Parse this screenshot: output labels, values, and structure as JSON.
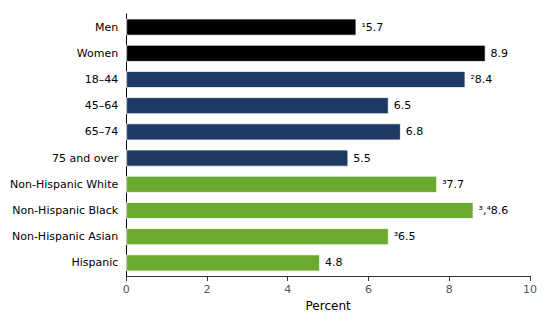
{
  "chart_data": {
    "type": "bar",
    "orientation": "horizontal",
    "categories": [
      "Men",
      "Women",
      "18–44",
      "45–64",
      "65–74",
      "75 and over",
      "Non-Hispanic White",
      "Non-Hispanic Black",
      "Non-Hispanic Asian",
      "Hispanic"
    ],
    "values": [
      5.7,
      8.9,
      8.4,
      6.5,
      6.8,
      5.5,
      7.7,
      8.6,
      6.5,
      4.8
    ],
    "colors": [
      "#000000",
      "#000000",
      "#1f3864",
      "#1f3864",
      "#1f3864",
      "#1f3864",
      "#6aaa2e",
      "#6aaa2e",
      "#6aaa2e",
      "#6aaa2e"
    ],
    "data_labels": true,
    "value_labels": [
      "¹5.7",
      "8.9",
      "²8.4",
      "6.5",
      "6.8",
      "5.5",
      "³7.7",
      "³,⁴8.6",
      "³6.5",
      "4.8"
    ],
    "xlabel": "Percent",
    "xlim": [
      0,
      10
    ],
    "xticks": [
      0,
      2,
      4,
      6,
      8,
      10
    ],
    "grid": false
  }
}
